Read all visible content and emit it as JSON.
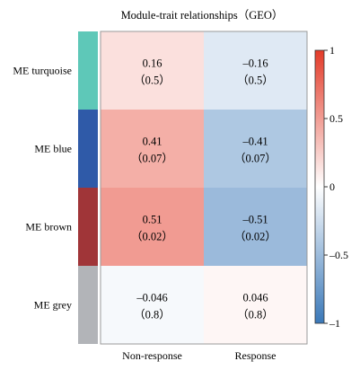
{
  "chart_data": {
    "type": "heatmap",
    "title": "Module-trait relationships（GEO）",
    "rows": [
      {
        "label": "ME turquoise",
        "color": "#5ec8b8"
      },
      {
        "label": "ME blue",
        "color": "#2f5aa8"
      },
      {
        "label": "ME brown",
        "color": "#a03538"
      },
      {
        "label": "ME grey",
        "color": "#b2b4b8"
      }
    ],
    "columns": [
      "Non-response",
      "Response"
    ],
    "values": [
      [
        0.16,
        -0.16
      ],
      [
        0.41,
        -0.41
      ],
      [
        0.51,
        -0.51
      ],
      [
        -0.046,
        0.046
      ]
    ],
    "value_labels": [
      [
        "0.16",
        "–0.16"
      ],
      [
        "0.41",
        "–0.41"
      ],
      [
        "0.51",
        "–0.51"
      ],
      [
        "–0.046",
        "0.046"
      ]
    ],
    "p_labels": [
      [
        "（0.5）",
        "（0.5）"
      ],
      [
        "（0.07）",
        "（0.07）"
      ],
      [
        "（0.02）",
        "（0.02）"
      ],
      [
        "（0.8）",
        "（0.8）"
      ]
    ],
    "colorbar": {
      "range": [
        -1,
        1
      ],
      "ticks": [
        1,
        0.5,
        0,
        -0.5,
        -1
      ],
      "tick_labels": [
        "1",
        "0.5",
        "0",
        "–0.5",
        "–1"
      ],
      "colors": {
        "low": "#3a78b8",
        "mid": "#ffffff",
        "high": "#e33b29"
      }
    }
  }
}
